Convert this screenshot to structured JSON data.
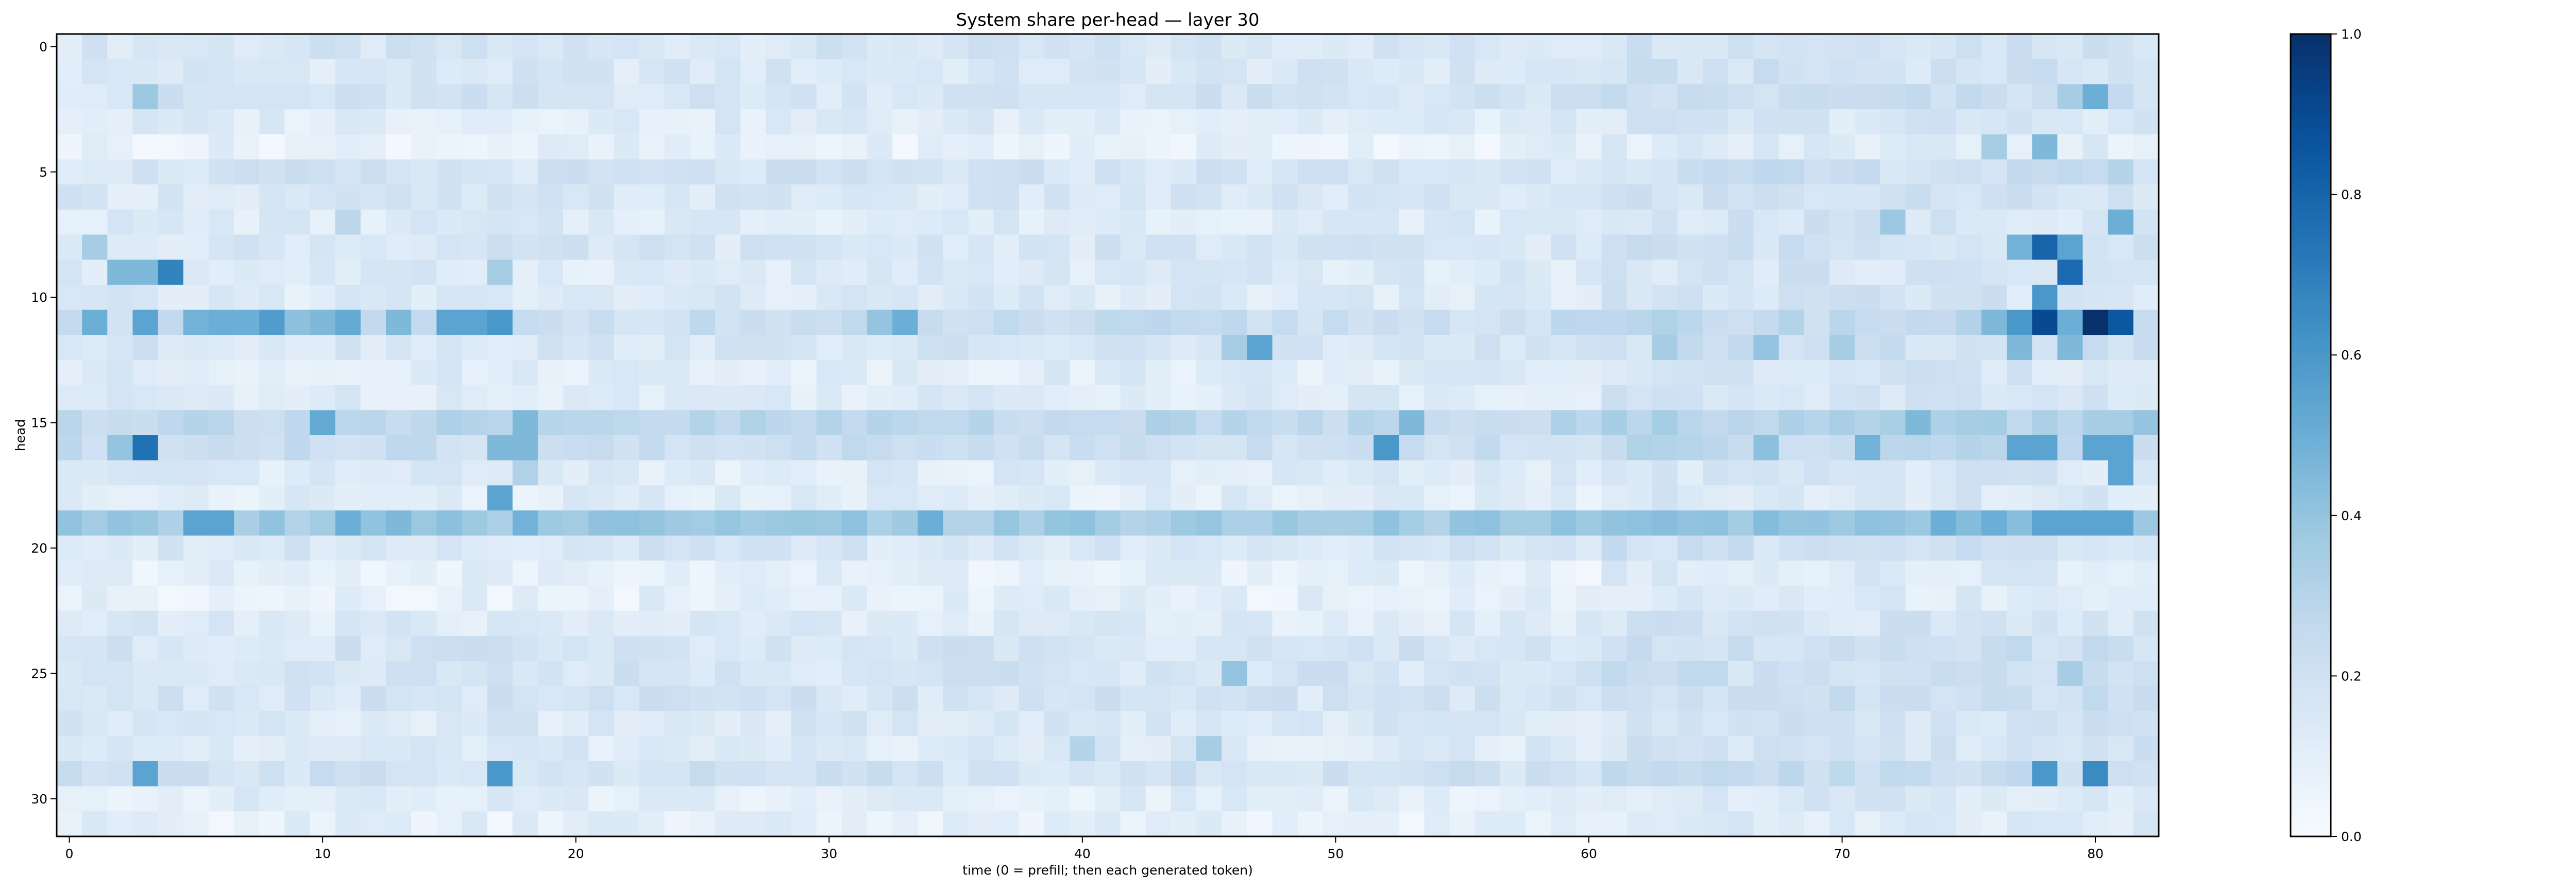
{
  "chart_data": {
    "type": "heatmap",
    "title": "System share per-head — layer 30",
    "xlabel": "time (0 = prefill; then each generated token)",
    "ylabel": "head",
    "x_range": [
      0,
      82
    ],
    "y_range": [
      0,
      31
    ],
    "x_ticks": [
      "0",
      "10",
      "20",
      "30",
      "40",
      "50",
      "60",
      "70",
      "80"
    ],
    "y_ticks": [
      "0",
      "5",
      "10",
      "15",
      "20",
      "25",
      "30"
    ],
    "colormap": "Blues",
    "colorbar": {
      "range": [
        0.0,
        1.0
      ],
      "ticks": [
        "0.0",
        "0.2",
        "0.4",
        "0.6",
        "0.8",
        "1.0"
      ],
      "colors": [
        "#f7fbff",
        "#deebf7",
        "#c6dbef",
        "#9ecae1",
        "#6baed6",
        "#4292c6",
        "#2171b5",
        "#08519c",
        "#08306b"
      ]
    },
    "head_baseline": [
      0.16,
      0.15,
      0.17,
      0.12,
      0.08,
      0.17,
      0.15,
      0.13,
      0.16,
      0.13,
      0.13,
      0.22,
      0.16,
      0.12,
      0.13,
      0.27,
      0.22,
      0.12,
      0.11,
      0.36,
      0.16,
      0.09,
      0.09,
      0.13,
      0.17,
      0.17,
      0.17,
      0.14,
      0.13,
      0.19,
      0.11,
      0.09
    ],
    "highlights": [
      {
        "t": 3,
        "h": 2,
        "v": 0.38
      },
      {
        "t": 80,
        "h": 2,
        "v": 0.5
      },
      {
        "t": 79,
        "h": 2,
        "v": 0.35
      },
      {
        "t": 76,
        "h": 4,
        "v": 0.35
      },
      {
        "t": 78,
        "h": 4,
        "v": 0.45
      },
      {
        "t": 81,
        "h": 5,
        "v": 0.3
      },
      {
        "t": 81,
        "h": 7,
        "v": 0.5
      },
      {
        "t": 72,
        "h": 7,
        "v": 0.38
      },
      {
        "t": 11,
        "h": 7,
        "v": 0.28
      },
      {
        "t": 78,
        "h": 8,
        "v": 0.8
      },
      {
        "t": 77,
        "h": 8,
        "v": 0.48
      },
      {
        "t": 79,
        "h": 8,
        "v": 0.55
      },
      {
        "t": 1,
        "h": 8,
        "v": 0.35
      },
      {
        "t": 2,
        "h": 9,
        "v": 0.45
      },
      {
        "t": 3,
        "h": 9,
        "v": 0.45
      },
      {
        "t": 4,
        "h": 9,
        "v": 0.68
      },
      {
        "t": 17,
        "h": 9,
        "v": 0.35
      },
      {
        "t": 79,
        "h": 9,
        "v": 0.78
      },
      {
        "t": 78,
        "h": 10,
        "v": 0.6
      },
      {
        "t": 1,
        "h": 11,
        "v": 0.5
      },
      {
        "t": 3,
        "h": 11,
        "v": 0.55
      },
      {
        "t": 5,
        "h": 11,
        "v": 0.48
      },
      {
        "t": 6,
        "h": 11,
        "v": 0.5
      },
      {
        "t": 7,
        "h": 11,
        "v": 0.5
      },
      {
        "t": 8,
        "h": 11,
        "v": 0.58
      },
      {
        "t": 9,
        "h": 11,
        "v": 0.42
      },
      {
        "t": 10,
        "h": 11,
        "v": 0.45
      },
      {
        "t": 11,
        "h": 11,
        "v": 0.52
      },
      {
        "t": 13,
        "h": 11,
        "v": 0.45
      },
      {
        "t": 15,
        "h": 11,
        "v": 0.55
      },
      {
        "t": 16,
        "h": 11,
        "v": 0.55
      },
      {
        "t": 17,
        "h": 11,
        "v": 0.6
      },
      {
        "t": 32,
        "h": 11,
        "v": 0.4
      },
      {
        "t": 33,
        "h": 11,
        "v": 0.5
      },
      {
        "t": 77,
        "h": 11,
        "v": 0.6
      },
      {
        "t": 78,
        "h": 11,
        "v": 0.9
      },
      {
        "t": 79,
        "h": 11,
        "v": 0.5
      },
      {
        "t": 80,
        "h": 11,
        "v": 1.0
      },
      {
        "t": 81,
        "h": 11,
        "v": 0.85
      },
      {
        "t": 76,
        "h": 11,
        "v": 0.45
      },
      {
        "t": 47,
        "h": 12,
        "v": 0.55
      },
      {
        "t": 46,
        "h": 12,
        "v": 0.35
      },
      {
        "t": 63,
        "h": 12,
        "v": 0.35
      },
      {
        "t": 67,
        "h": 12,
        "v": 0.4
      },
      {
        "t": 70,
        "h": 12,
        "v": 0.35
      },
      {
        "t": 77,
        "h": 12,
        "v": 0.45
      },
      {
        "t": 79,
        "h": 12,
        "v": 0.45
      },
      {
        "t": 10,
        "h": 15,
        "v": 0.52
      },
      {
        "t": 18,
        "h": 15,
        "v": 0.45
      },
      {
        "t": 53,
        "h": 15,
        "v": 0.45
      },
      {
        "t": 73,
        "h": 15,
        "v": 0.45
      },
      {
        "t": 82,
        "h": 15,
        "v": 0.4
      },
      {
        "t": 3,
        "h": 16,
        "v": 0.75
      },
      {
        "t": 2,
        "h": 16,
        "v": 0.4
      },
      {
        "t": 17,
        "h": 16,
        "v": 0.45
      },
      {
        "t": 18,
        "h": 16,
        "v": 0.45
      },
      {
        "t": 52,
        "h": 16,
        "v": 0.6
      },
      {
        "t": 71,
        "h": 16,
        "v": 0.48
      },
      {
        "t": 67,
        "h": 16,
        "v": 0.42
      },
      {
        "t": 77,
        "h": 16,
        "v": 0.55
      },
      {
        "t": 78,
        "h": 16,
        "v": 0.55
      },
      {
        "t": 80,
        "h": 16,
        "v": 0.55
      },
      {
        "t": 81,
        "h": 16,
        "v": 0.55
      },
      {
        "t": 81,
        "h": 17,
        "v": 0.55
      },
      {
        "t": 18,
        "h": 17,
        "v": 0.32
      },
      {
        "t": 17,
        "h": 18,
        "v": 0.55
      },
      {
        "t": 5,
        "h": 19,
        "v": 0.55
      },
      {
        "t": 6,
        "h": 19,
        "v": 0.55
      },
      {
        "t": 11,
        "h": 19,
        "v": 0.5
      },
      {
        "t": 13,
        "h": 19,
        "v": 0.45
      },
      {
        "t": 18,
        "h": 19,
        "v": 0.48
      },
      {
        "t": 34,
        "h": 19,
        "v": 0.5
      },
      {
        "t": 74,
        "h": 19,
        "v": 0.5
      },
      {
        "t": 78,
        "h": 19,
        "v": 0.55
      },
      {
        "t": 79,
        "h": 19,
        "v": 0.55
      },
      {
        "t": 80,
        "h": 19,
        "v": 0.55
      },
      {
        "t": 81,
        "h": 19,
        "v": 0.55
      },
      {
        "t": 76,
        "h": 19,
        "v": 0.5
      },
      {
        "t": 3,
        "h": 29,
        "v": 0.55
      },
      {
        "t": 17,
        "h": 29,
        "v": 0.6
      },
      {
        "t": 78,
        "h": 29,
        "v": 0.6
      },
      {
        "t": 80,
        "h": 29,
        "v": 0.65
      },
      {
        "t": 46,
        "h": 25,
        "v": 0.4
      },
      {
        "t": 79,
        "h": 25,
        "v": 0.35
      },
      {
        "t": 45,
        "h": 28,
        "v": 0.35
      },
      {
        "t": 40,
        "h": 28,
        "v": 0.3
      }
    ],
    "grid": false,
    "legend": "none"
  }
}
